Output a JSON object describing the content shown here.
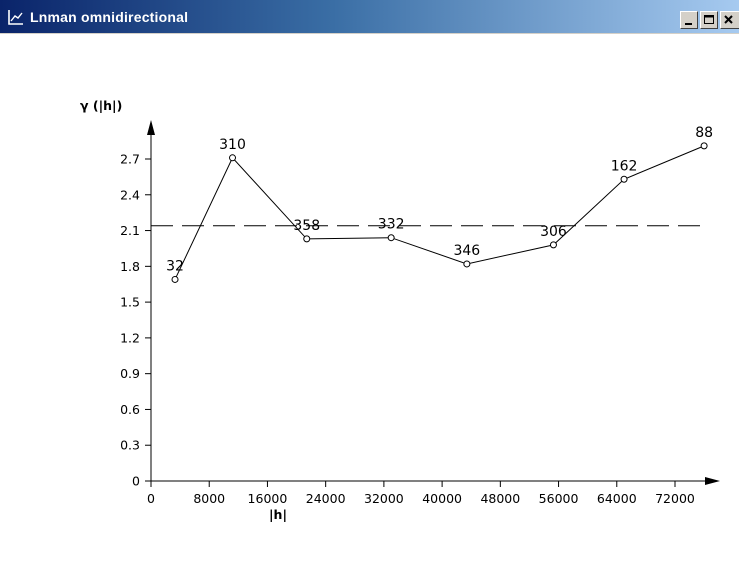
{
  "window": {
    "title": "Lnman omnidirectional",
    "title_icon": "chart-line-icon",
    "controls": [
      "minimize-icon",
      "maximize-icon",
      "close-icon"
    ]
  },
  "colors": {
    "titlebar_start": "#0a246a",
    "titlebar_end": "#a6caf0",
    "line": "#000000",
    "background": "#ffffff"
  },
  "chart_data": {
    "type": "line",
    "title": "",
    "xlabel": "|h|",
    "ylabel": "γ (|h|)",
    "xlim": [
      0,
      76000
    ],
    "ylim": [
      0,
      2.85
    ],
    "x_ticks": [
      0,
      8000,
      16000,
      24000,
      32000,
      40000,
      48000,
      56000,
      64000,
      72000
    ],
    "x_tick_labels": [
      "0",
      "8000",
      "16000",
      "24000",
      "32000",
      "40000",
      "48000",
      "56000",
      "64000",
      "72000"
    ],
    "y_ticks": [
      0,
      0.3,
      0.6,
      0.9,
      1.2,
      1.5,
      1.8,
      2.1,
      2.4,
      2.7
    ],
    "y_tick_labels": [
      "0",
      "0.3",
      "0.6",
      "0.9",
      "1.2",
      "1.5",
      "1.8",
      "2.1",
      "2.4",
      "2.7"
    ],
    "grid": false,
    "series": [
      {
        "x": [
          3300,
          11200,
          21400,
          33000,
          43400,
          55300,
          65000,
          76000
        ],
        "y": [
          1.69,
          2.71,
          2.03,
          2.04,
          1.82,
          1.98,
          2.53,
          2.81
        ],
        "point_labels": [
          "32",
          "310",
          "358",
          "332",
          "346",
          "306",
          "162",
          "88"
        ]
      }
    ],
    "reference_line": {
      "y": 2.14,
      "style": "dashed"
    }
  }
}
